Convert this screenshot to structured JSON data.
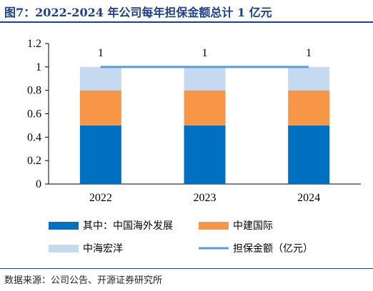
{
  "title": "图7：2022-2024 年公司每年担保金额总计 1 亿元",
  "source": "数据来源：公司公告、开源证券研究所",
  "chart_data": {
    "type": "bar",
    "stacked": true,
    "categories": [
      "2022",
      "2023",
      "2024"
    ],
    "ylim": [
      0,
      1.2
    ],
    "yticks": [
      "0",
      "0.2",
      "0.4",
      "0.6",
      "0.8",
      "1",
      "1.2"
    ],
    "series": [
      {
        "name": "其中：中国海外发展",
        "type": "bar",
        "color": "#0070c0",
        "values": [
          0.5,
          0.5,
          0.5
        ]
      },
      {
        "name": "中建国际",
        "type": "bar",
        "color": "#f79646",
        "values": [
          0.3,
          0.3,
          0.3
        ]
      },
      {
        "name": "中海宏洋",
        "type": "bar",
        "color": "#c5d9f1",
        "values": [
          0.2,
          0.2,
          0.2
        ]
      },
      {
        "name": "担保金额（亿元）",
        "type": "line",
        "color": "#5b9bd5",
        "values": [
          1,
          1,
          1
        ],
        "labels": [
          "1",
          "1",
          "1"
        ]
      }
    ],
    "legend_position": "bottom",
    "grid": false
  }
}
